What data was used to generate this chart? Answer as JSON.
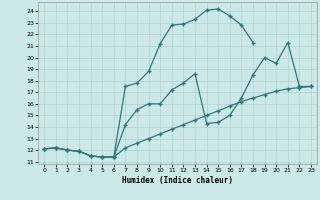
{
  "xlabel": "Humidex (Indice chaleur)",
  "bg_color": "#cde8e8",
  "line_color": "#2a7a7a",
  "grid_color": "#b0d0d0",
  "xlim": [
    -0.5,
    23.5
  ],
  "ylim": [
    10.8,
    24.8
  ],
  "yticks": [
    11,
    12,
    13,
    14,
    15,
    16,
    17,
    18,
    19,
    20,
    21,
    22,
    23,
    24
  ],
  "xticks": [
    0,
    1,
    2,
    3,
    4,
    5,
    6,
    7,
    8,
    9,
    10,
    11,
    12,
    13,
    14,
    15,
    16,
    17,
    18,
    19,
    20,
    21,
    22,
    23
  ],
  "curve_upper_x": [
    0,
    1,
    2,
    3,
    4,
    5,
    6,
    7,
    8,
    9,
    10,
    11,
    12,
    13,
    14,
    15,
    16,
    17,
    18
  ],
  "curve_upper_y": [
    12.1,
    12.2,
    12.0,
    11.9,
    11.5,
    11.4,
    11.4,
    17.5,
    17.8,
    18.8,
    21.2,
    22.8,
    22.9,
    23.3,
    24.1,
    24.2,
    23.6,
    22.8,
    21.3
  ],
  "curve_mid_x": [
    0,
    1,
    2,
    3,
    4,
    5,
    6,
    7,
    8,
    9,
    10,
    11,
    12,
    13,
    14,
    15,
    16,
    17,
    18,
    19,
    20,
    21,
    22,
    23
  ],
  "curve_mid_y": [
    12.1,
    12.2,
    12.0,
    11.9,
    11.5,
    11.4,
    11.4,
    14.2,
    15.5,
    16.0,
    16.0,
    17.2,
    17.8,
    18.6,
    14.3,
    14.4,
    15.0,
    16.5,
    18.5,
    20.0,
    19.5,
    21.3,
    17.5,
    17.5
  ],
  "curve_low_x": [
    0,
    1,
    2,
    3,
    4,
    5,
    6,
    7,
    8,
    9,
    10,
    11,
    12,
    13,
    14,
    15,
    16,
    17,
    18,
    19,
    20,
    21,
    22,
    23
  ],
  "curve_low_y": [
    12.1,
    12.2,
    12.0,
    11.9,
    11.5,
    11.4,
    11.4,
    12.2,
    12.6,
    13.0,
    13.4,
    13.8,
    14.2,
    14.6,
    15.0,
    15.4,
    15.8,
    16.2,
    16.5,
    16.8,
    17.1,
    17.3,
    17.4,
    17.5
  ]
}
